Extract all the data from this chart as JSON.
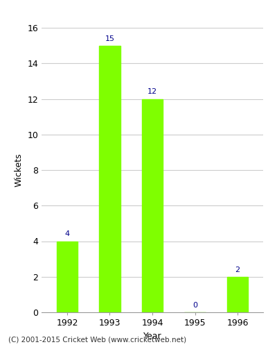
{
  "years": [
    "1992",
    "1993",
    "1994",
    "1995",
    "1996"
  ],
  "values": [
    4,
    15,
    12,
    0,
    2
  ],
  "bar_color": "#7FFF00",
  "bar_edge_color": "#7FFF00",
  "annotation_color": "#00008B",
  "xlabel": "Year",
  "ylabel": "Wickets",
  "ylim": [
    0,
    16
  ],
  "yticks": [
    0,
    2,
    4,
    6,
    8,
    10,
    12,
    14,
    16
  ],
  "grid_color": "#cccccc",
  "background_color": "#ffffff",
  "annotation_fontsize": 8,
  "axis_label_fontsize": 9,
  "tick_fontsize": 9,
  "footer_text": "(C) 2001-2015 Cricket Web (www.cricketweb.net)",
  "footer_fontsize": 7.5,
  "bar_width": 0.5
}
